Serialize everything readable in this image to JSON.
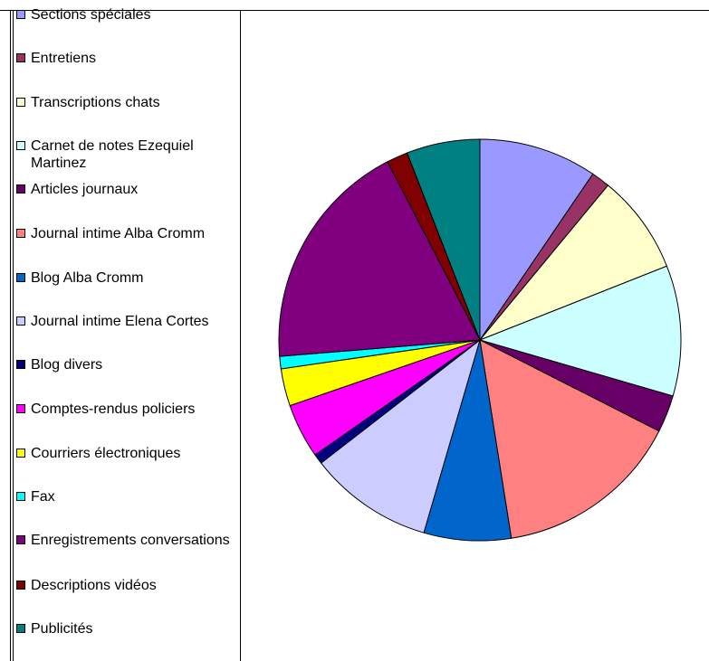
{
  "chart_data": {
    "type": "pie",
    "title": "",
    "legend_position": "left",
    "slices": [
      {
        "label": "Sections spéciales",
        "value": 9.5,
        "color": "#9999FF"
      },
      {
        "label": "Entretiens",
        "value": 1.5,
        "color": "#993366"
      },
      {
        "label": "Transcriptions chats",
        "value": 8.0,
        "color": "#FFFFCC"
      },
      {
        "label": "Carnet de notes Ezequiel Martinez",
        "value": 10.5,
        "color": "#CCFFFF"
      },
      {
        "label": "Articles journaux",
        "value": 3.0,
        "color": "#660066"
      },
      {
        "label": "Journal intime Alba Cromm",
        "value": 15.0,
        "color": "#FF8080"
      },
      {
        "label": "Blog Alba Cromm",
        "value": 7.0,
        "color": "#0066CC"
      },
      {
        "label": "Journal intime Elena Cortes",
        "value": 10.0,
        "color": "#CCCCFF"
      },
      {
        "label": "Blog divers",
        "value": 0.8,
        "color": "#000080"
      },
      {
        "label": "Comptes-rendus policiers",
        "value": 4.4,
        "color": "#FF00FF"
      },
      {
        "label": "Courriers électroniques",
        "value": 3.0,
        "color": "#FFFF00"
      },
      {
        "label": "Fax",
        "value": 1.0,
        "color": "#00FFFF"
      },
      {
        "label": "Enregistrements conversations",
        "value": 18.7,
        "color": "#800080"
      },
      {
        "label": "Descriptions vidéos",
        "value": 1.7,
        "color": "#800000"
      },
      {
        "label": "Publicités",
        "value": 5.9,
        "color": "#008080"
      }
    ]
  }
}
